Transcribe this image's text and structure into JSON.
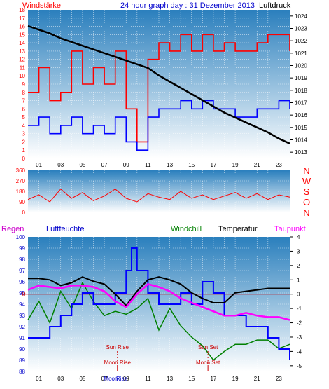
{
  "header": {
    "left_label": "Windstärke",
    "title": "24 hour graph day : 31 Dezember 2013",
    "right_label": "Luftdruck"
  },
  "colors": {
    "gradient_top": "#2a7fbd",
    "gradient_bottom": "#ffffff",
    "wind_red": "#ff0000",
    "wind_blue": "#0000ff",
    "pressure": "#000000",
    "dir": "#ff0000",
    "windchill": "#008000",
    "temperature": "#000000",
    "dewpoint": "#ff00ff",
    "humidity": "#0000ff",
    "sun": "#cc0000",
    "moon": "#cc0000"
  },
  "x_ticks": [
    "01",
    "03",
    "05",
    "07",
    "09",
    "11",
    "13",
    "15",
    "17",
    "19",
    "21",
    "23"
  ],
  "chart_data": [
    {
      "type": "line",
      "title": "24 hour graph day : 31 Dezember 2013",
      "x_range": [
        0,
        24
      ],
      "y_left": {
        "label": "Windstärke",
        "ticks": [
          0,
          1,
          2,
          3,
          4,
          5,
          6,
          7,
          8,
          9,
          10,
          11,
          12,
          13,
          14,
          15,
          16,
          17,
          18
        ],
        "range": [
          0,
          18
        ]
      },
      "y_right": {
        "label": "Luftdruck",
        "ticks": [
          1013,
          1014,
          1015,
          1016,
          1017,
          1018,
          1019,
          1020,
          1021,
          1022,
          1023,
          1024
        ],
        "range": [
          1012.5,
          1024.5
        ]
      },
      "series": [
        {
          "name": "Windstärke",
          "gust_red": [
            [
              0,
              8
            ],
            [
              1,
              11
            ],
            [
              2,
              7
            ],
            [
              3,
              8
            ],
            [
              4,
              13
            ],
            [
              5,
              9
            ],
            [
              6,
              11
            ],
            [
              7,
              9
            ],
            [
              8,
              13
            ],
            [
              9,
              6
            ],
            [
              10,
              2
            ],
            [
              11,
              12
            ],
            [
              12,
              14
            ],
            [
              13,
              13
            ],
            [
              14,
              15
            ],
            [
              15,
              13
            ],
            [
              16,
              15
            ],
            [
              17,
              13
            ],
            [
              18,
              14
            ],
            [
              19,
              13
            ],
            [
              20,
              13
            ],
            [
              21,
              14
            ],
            [
              22,
              15
            ],
            [
              23,
              15
            ],
            [
              24,
              13
            ]
          ],
          "mean_blue": [
            [
              0,
              4
            ],
            [
              1,
              5
            ],
            [
              2,
              3
            ],
            [
              3,
              4
            ],
            [
              4,
              5
            ],
            [
              5,
              3
            ],
            [
              6,
              4
            ],
            [
              7,
              3
            ],
            [
              8,
              5
            ],
            [
              9,
              2
            ],
            [
              10,
              1
            ],
            [
              11,
              5
            ],
            [
              12,
              6
            ],
            [
              13,
              6
            ],
            [
              14,
              7
            ],
            [
              15,
              6
            ],
            [
              16,
              7
            ],
            [
              17,
              6
            ],
            [
              18,
              6
            ],
            [
              19,
              5
            ],
            [
              20,
              5
            ],
            [
              21,
              6
            ],
            [
              22,
              6
            ],
            [
              23,
              7
            ],
            [
              24,
              6
            ]
          ]
        },
        {
          "name": "Luftdruck",
          "points": [
            [
              0,
              1023.2
            ],
            [
              1,
              1022.9
            ],
            [
              2,
              1022.6
            ],
            [
              3,
              1022.2
            ],
            [
              4,
              1021.9
            ],
            [
              5,
              1021.6
            ],
            [
              6,
              1021.3
            ],
            [
              7,
              1021.0
            ],
            [
              8,
              1020.7
            ],
            [
              9,
              1020.4
            ],
            [
              10,
              1020.1
            ],
            [
              11,
              1019.8
            ],
            [
              12,
              1019.2
            ],
            [
              13,
              1018.7
            ],
            [
              14,
              1018.2
            ],
            [
              15,
              1017.7
            ],
            [
              16,
              1017.2
            ],
            [
              17,
              1016.7
            ],
            [
              18,
              1016.2
            ],
            [
              19,
              1015.8
            ],
            [
              20,
              1015.4
            ],
            [
              21,
              1015.0
            ],
            [
              22,
              1014.6
            ],
            [
              23,
              1014.1
            ],
            [
              24,
              1013.7
            ]
          ]
        }
      ]
    },
    {
      "type": "line",
      "y_left": {
        "ticks": [
          0,
          90,
          180,
          270,
          360
        ],
        "range": [
          0,
          360
        ]
      },
      "y_right_labels": [
        "N",
        "W",
        "S",
        "O",
        "N"
      ],
      "series": [
        {
          "name": "Windrichtung",
          "points": [
            [
              0,
              110
            ],
            [
              1,
              150
            ],
            [
              2,
              90
            ],
            [
              3,
              200
            ],
            [
              4,
              120
            ],
            [
              5,
              170
            ],
            [
              6,
              100
            ],
            [
              7,
              140
            ],
            [
              8,
              200
            ],
            [
              9,
              120
            ],
            [
              10,
              90
            ],
            [
              11,
              160
            ],
            [
              12,
              130
            ],
            [
              13,
              110
            ],
            [
              14,
              180
            ],
            [
              15,
              120
            ],
            [
              16,
              150
            ],
            [
              17,
              110
            ],
            [
              18,
              140
            ],
            [
              19,
              170
            ],
            [
              20,
              120
            ],
            [
              21,
              160
            ],
            [
              22,
              110
            ],
            [
              23,
              150
            ],
            [
              24,
              130
            ]
          ]
        }
      ]
    },
    {
      "type": "line",
      "legend": [
        "Regen",
        "Luftfeuchte",
        "Windchill",
        "Temperatur",
        "Taupunkt"
      ],
      "y_left": {
        "label": "Luftfeuchte",
        "ticks": [
          88,
          89,
          90,
          91,
          92,
          93,
          94,
          95,
          96,
          97,
          98,
          99,
          100
        ],
        "range": [
          88,
          100
        ]
      },
      "y_right": {
        "ticks": [
          -5,
          -4,
          -3,
          -2,
          -1,
          0,
          1,
          2,
          3,
          4
        ],
        "range": [
          -5.4,
          4
        ]
      },
      "zero_line_label": "0",
      "series": [
        {
          "name": "Luftfeuchte",
          "points": [
            [
              0,
              91
            ],
            [
              1,
              91
            ],
            [
              2,
              92
            ],
            [
              3,
              93
            ],
            [
              4,
              94
            ],
            [
              5,
              95
            ],
            [
              6,
              94
            ],
            [
              7,
              94
            ],
            [
              8,
              95
            ],
            [
              9,
              97
            ],
            [
              9.5,
              99
            ],
            [
              10,
              97
            ],
            [
              11,
              95
            ],
            [
              12,
              94
            ],
            [
              13,
              94
            ],
            [
              14,
              95
            ],
            [
              15,
              94
            ],
            [
              16,
              96
            ],
            [
              17,
              95
            ],
            [
              18,
              93
            ],
            [
              19,
              93
            ],
            [
              20,
              92
            ],
            [
              21,
              92
            ],
            [
              22,
              91
            ],
            [
              23,
              90
            ],
            [
              24,
              89
            ]
          ]
        },
        {
          "name": "Temperatur",
          "points": [
            [
              0,
              1.1
            ],
            [
              1,
              1.1
            ],
            [
              2,
              1.0
            ],
            [
              3,
              0.6
            ],
            [
              4,
              0.8
            ],
            [
              5,
              1.2
            ],
            [
              6,
              0.9
            ],
            [
              7,
              0.7
            ],
            [
              8,
              0.0
            ],
            [
              9,
              -0.8
            ],
            [
              10,
              0.2
            ],
            [
              11,
              1.0
            ],
            [
              12,
              1.2
            ],
            [
              13,
              1.0
            ],
            [
              14,
              0.7
            ],
            [
              15,
              0.1
            ],
            [
              16,
              -0.3
            ],
            [
              17,
              -0.6
            ],
            [
              18,
              -0.6
            ],
            [
              19,
              0.1
            ],
            [
              20,
              0.2
            ],
            [
              21,
              0.3
            ],
            [
              22,
              0.4
            ],
            [
              23,
              0.4
            ],
            [
              24,
              0.4
            ]
          ]
        },
        {
          "name": "Taupunkt",
          "points": [
            [
              0,
              0.3
            ],
            [
              1,
              0.6
            ],
            [
              2,
              0.5
            ],
            [
              3,
              0.4
            ],
            [
              4,
              0.6
            ],
            [
              5,
              0.6
            ],
            [
              6,
              0.5
            ],
            [
              7,
              0.2
            ],
            [
              8,
              -0.5
            ],
            [
              9,
              -0.9
            ],
            [
              10,
              0.0
            ],
            [
              11,
              0.7
            ],
            [
              12,
              0.5
            ],
            [
              13,
              0.2
            ],
            [
              14,
              -0.3
            ],
            [
              15,
              -0.6
            ],
            [
              16,
              -0.9
            ],
            [
              17,
              -1.2
            ],
            [
              18,
              -1.5
            ],
            [
              19,
              -1.5
            ],
            [
              20,
              -1.3
            ],
            [
              21,
              -1.5
            ],
            [
              22,
              -1.6
            ],
            [
              23,
              -1.6
            ],
            [
              24,
              -1.8
            ]
          ]
        },
        {
          "name": "Windchill",
          "points": [
            [
              0,
              -1.8
            ],
            [
              1,
              -0.5
            ],
            [
              2,
              -2.0
            ],
            [
              3,
              0.2
            ],
            [
              4,
              -1.0
            ],
            [
              5,
              0.8
            ],
            [
              6,
              -0.5
            ],
            [
              7,
              -1.5
            ],
            [
              8,
              -1.2
            ],
            [
              9,
              -1.4
            ],
            [
              10,
              -1.0
            ],
            [
              11,
              -0.3
            ],
            [
              12,
              -2.5
            ],
            [
              13,
              -1.0
            ],
            [
              14,
              -2.2
            ],
            [
              15,
              -3.0
            ],
            [
              16,
              -3.6
            ],
            [
              17,
              -4.6
            ],
            [
              18,
              -4.0
            ],
            [
              19,
              -3.5
            ],
            [
              20,
              -3.5
            ],
            [
              21,
              -3.2
            ],
            [
              22,
              -3.2
            ],
            [
              23,
              -3.8
            ],
            [
              24,
              -3.5
            ]
          ]
        }
      ],
      "events": [
        {
          "label": "Sun Rise",
          "x": 8.2
        },
        {
          "label": "Moon Rise",
          "x": 8.2
        },
        {
          "label": "Sun Set",
          "x": 16.5
        },
        {
          "label": "Moon Set",
          "x": 16.5
        }
      ],
      "x_extra_labels": [
        "Moon",
        "Rise"
      ]
    }
  ]
}
